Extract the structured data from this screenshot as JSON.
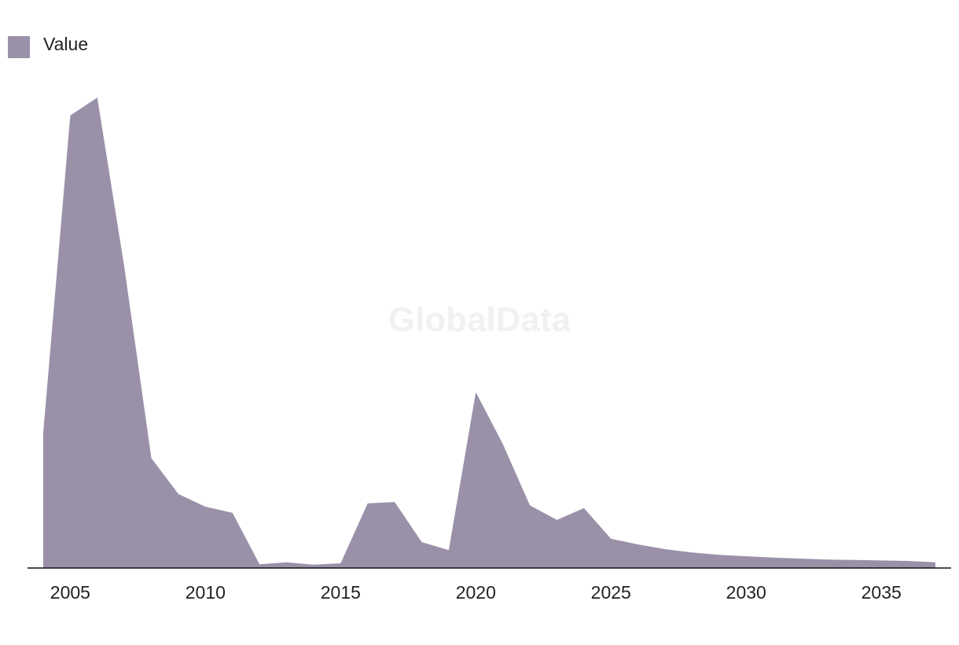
{
  "chart_data": {
    "type": "area",
    "watermark": "GlobalData",
    "x": [
      2004,
      2005,
      2006,
      2007,
      2008,
      2009,
      2010,
      2011,
      2012,
      2013,
      2014,
      2015,
      2016,
      2017,
      2018,
      2019,
      2020,
      2021,
      2022,
      2023,
      2024,
      2025,
      2026,
      2027,
      2028,
      2029,
      2030,
      2031,
      2032,
      2033,
      2034,
      2035,
      2036,
      2037
    ],
    "series": [
      {
        "name": "Value",
        "color": "#9a91a9",
        "values": [
          28.7,
          96,
          99.8,
          63.8,
          23.3,
          15.7,
          13,
          11.7,
          0.8,
          1.2,
          0.7,
          1,
          13.7,
          14,
          5.5,
          3.8,
          37.3,
          26.3,
          13.3,
          10.2,
          12.7,
          6.2,
          5,
          4,
          3.3,
          2.8,
          2.5,
          2.2,
          2,
          1.8,
          1.7,
          1.6,
          1.5,
          1.2
        ]
      }
    ],
    "xlim": [
      2004,
      2037
    ],
    "xticks": [
      2005,
      2010,
      2015,
      2020,
      2025,
      2030,
      2035
    ],
    "ylim": [
      0,
      110
    ],
    "legend": "top-left"
  }
}
